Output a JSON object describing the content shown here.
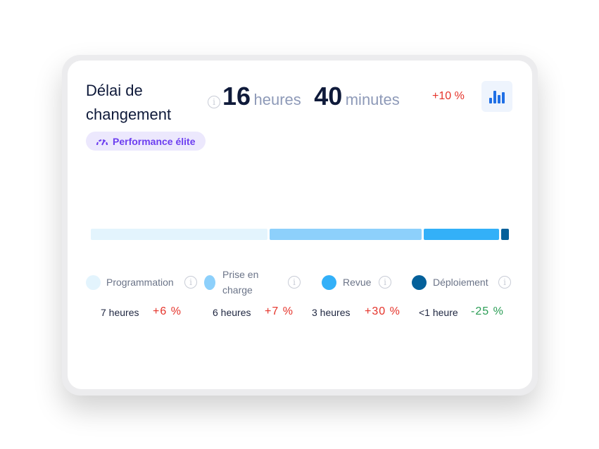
{
  "metric": {
    "title": "Délai de changement",
    "badge": "Performance élite",
    "hours_value": "16",
    "hours_unit": "heures",
    "minutes_value": "40",
    "minutes_unit": "minutes",
    "change": "+10 %",
    "change_color": "#e5332a"
  },
  "chart_data": {
    "type": "bar",
    "orientation": "horizontal-stacked",
    "categories": [
      "Programmation",
      "Prise en charge",
      "Revue",
      "Déploiement"
    ],
    "values_hours": [
      7,
      6,
      3,
      0.3
    ],
    "colors": [
      "#e3f4fd",
      "#8dd0fb",
      "#33b0f8",
      "#04609a"
    ]
  },
  "stages": [
    {
      "label": "Programmation",
      "value": "7 heures",
      "change": "+6 %",
      "color": "#e3f4fd",
      "change_color": "#e5332a"
    },
    {
      "label": "Prise en charge",
      "value": "6 heures",
      "change": "+7 %",
      "color": "#8dd0fb",
      "change_color": "#e5332a"
    },
    {
      "label": "Revue",
      "value": "3 heures",
      "change": "+30 %",
      "color": "#33b0f8",
      "change_color": "#e5332a"
    },
    {
      "label": "Déploiement",
      "value": "<1 heure",
      "change": "-25 %",
      "color": "#04609a",
      "change_color": "#2a9d55"
    }
  ],
  "icons": {
    "badge": "gauge-icon",
    "info": "info-icon",
    "chart": "bar-chart-icon"
  }
}
